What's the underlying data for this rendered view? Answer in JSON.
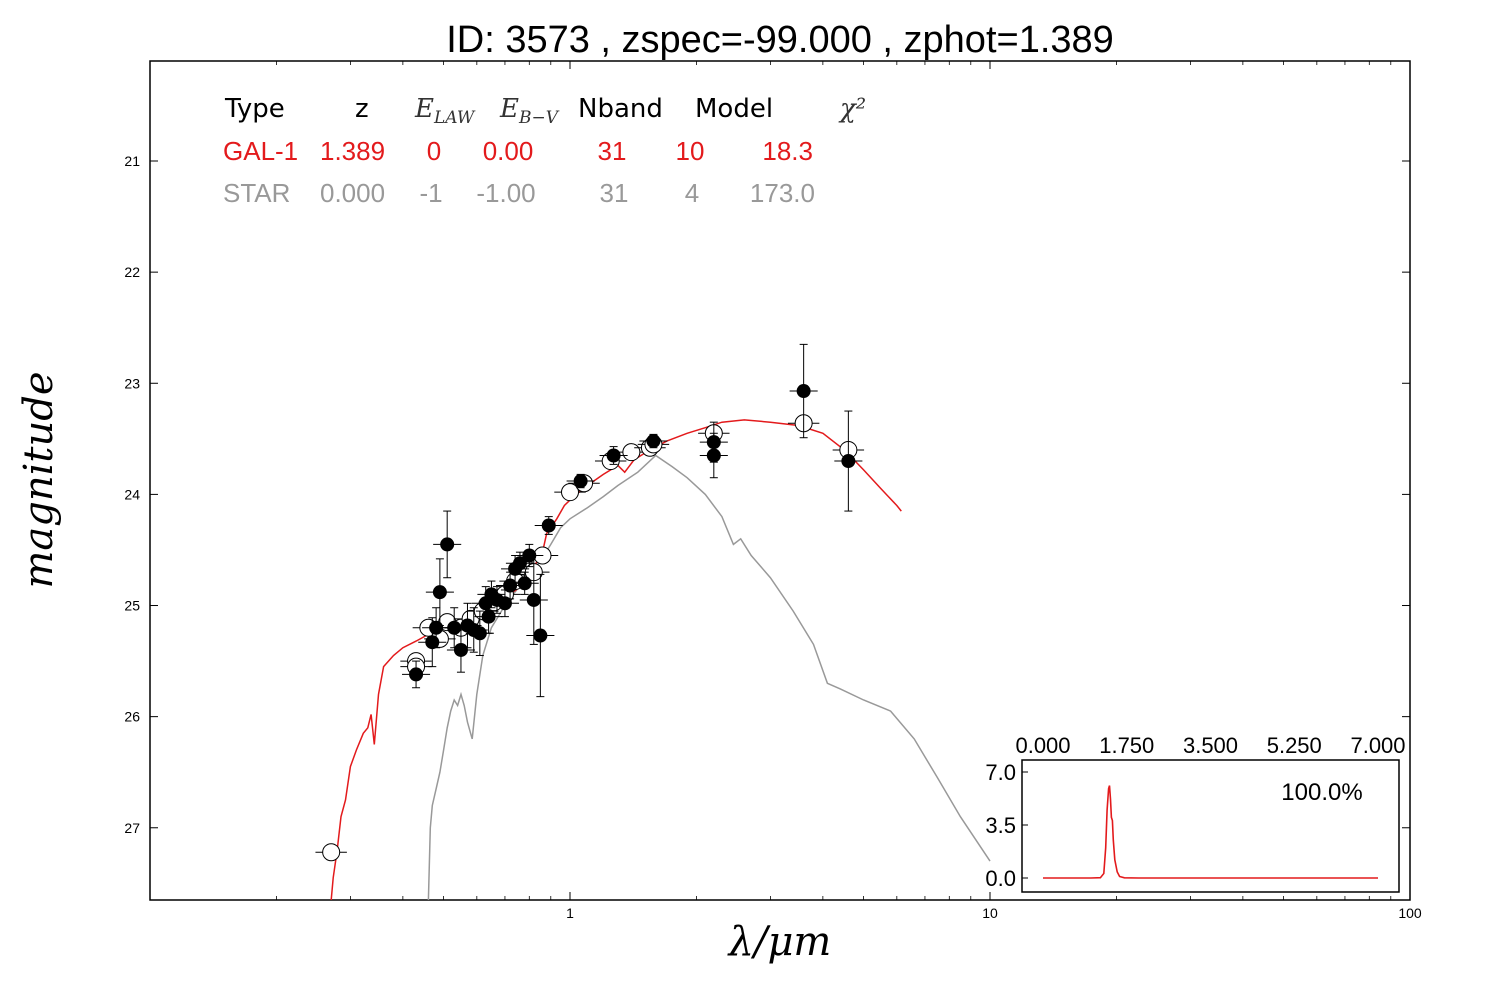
{
  "title": "ID:  3573  , zspec=-99.000 , zphot=1.389",
  "colors": {
    "gal": "#e31a1c",
    "star": "#999999",
    "obs": "#000000"
  },
  "table": {
    "headers": [
      "Type",
      "z",
      "E_LAW",
      "E_B−V",
      "Nband",
      "Model",
      "χ²"
    ],
    "rows": [
      {
        "name": "gal",
        "cells": [
          "GAL-1",
          "1.389",
          "0",
          "0.00",
          "31",
          "10",
          "18.3"
        ]
      },
      {
        "name": "star",
        "cells": [
          "STAR",
          "0.000",
          "-1",
          "-1.00",
          "31",
          "4",
          "173.0"
        ]
      }
    ]
  },
  "chart_data": [
    {
      "type": "scatter",
      "xlabel": "λ/μm",
      "ylabel": "magnitude",
      "xscale": "log",
      "xlim": [
        0.1,
        100
      ],
      "ylim": [
        27.65,
        20.1
      ],
      "xticks": [
        1,
        10,
        100
      ],
      "xtick_labels": [
        "1",
        "10",
        "100"
      ],
      "yticks": [
        21,
        22,
        23,
        24,
        25,
        26,
        27
      ],
      "yaxis_inverted": true,
      "grid": false,
      "series": [
        {
          "name": "GAL-1",
          "kind": "line",
          "color": "#e31a1c",
          "points": [
            [
              0.27,
              27.65
            ],
            [
              0.273,
              27.45
            ],
            [
              0.279,
              27.2
            ],
            [
              0.285,
              26.9
            ],
            [
              0.292,
              26.75
            ],
            [
              0.3,
              26.45
            ],
            [
              0.31,
              26.3
            ],
            [
              0.322,
              26.15
            ],
            [
              0.33,
              26.1
            ],
            [
              0.336,
              25.98
            ],
            [
              0.342,
              26.25
            ],
            [
              0.35,
              25.8
            ],
            [
              0.36,
              25.55
            ],
            [
              0.38,
              25.45
            ],
            [
              0.4,
              25.38
            ],
            [
              0.43,
              25.32
            ],
            [
              0.45,
              25.28
            ],
            [
              0.48,
              25.22
            ],
            [
              0.52,
              25.18
            ],
            [
              0.56,
              25.12
            ],
            [
              0.6,
              25.06
            ],
            [
              0.65,
              25.0
            ],
            [
              0.7,
              24.93
            ],
            [
              0.75,
              24.85
            ],
            [
              0.8,
              24.72
            ],
            [
              0.83,
              24.62
            ],
            [
              0.86,
              24.52
            ],
            [
              0.88,
              24.35
            ],
            [
              0.93,
              24.22
            ],
            [
              0.97,
              24.1
            ],
            [
              1.02,
              24.02
            ],
            [
              1.1,
              23.92
            ],
            [
              1.2,
              23.82
            ],
            [
              1.3,
              23.74
            ],
            [
              1.35,
              23.8
            ],
            [
              1.42,
              23.69
            ],
            [
              1.55,
              23.6
            ],
            [
              1.7,
              23.52
            ],
            [
              1.9,
              23.45
            ],
            [
              2.1,
              23.4
            ],
            [
              2.3,
              23.35
            ],
            [
              2.6,
              23.33
            ],
            [
              3.0,
              23.35
            ],
            [
              3.5,
              23.38
            ],
            [
              4.0,
              23.45
            ],
            [
              4.5,
              23.6
            ],
            [
              5.0,
              23.78
            ],
            [
              5.5,
              23.95
            ],
            [
              6.0,
              24.1
            ],
            [
              6.15,
              24.15
            ]
          ]
        },
        {
          "name": "STAR",
          "kind": "line",
          "color": "#999999",
          "points": [
            [
              0.46,
              27.65
            ],
            [
              0.465,
              27.0
            ],
            [
              0.47,
              26.8
            ],
            [
              0.48,
              26.65
            ],
            [
              0.49,
              26.5
            ],
            [
              0.5,
              26.3
            ],
            [
              0.51,
              26.1
            ],
            [
              0.52,
              25.95
            ],
            [
              0.53,
              25.85
            ],
            [
              0.54,
              25.9
            ],
            [
              0.55,
              25.8
            ],
            [
              0.56,
              25.9
            ],
            [
              0.57,
              26.05
            ],
            [
              0.58,
              26.15
            ],
            [
              0.585,
              26.2
            ],
            [
              0.6,
              25.8
            ],
            [
              0.62,
              25.45
            ],
            [
              0.65,
              25.2
            ],
            [
              0.7,
              25.0
            ],
            [
              0.75,
              24.85
            ],
            [
              0.8,
              24.72
            ],
            [
              0.85,
              24.6
            ],
            [
              0.9,
              24.45
            ],
            [
              0.95,
              24.3
            ],
            [
              1.0,
              24.22
            ],
            [
              1.1,
              24.12
            ],
            [
              1.2,
              24.02
            ],
            [
              1.3,
              23.92
            ],
            [
              1.45,
              23.8
            ],
            [
              1.6,
              23.65
            ],
            [
              1.75,
              23.75
            ],
            [
              1.9,
              23.85
            ],
            [
              2.1,
              24.0
            ],
            [
              2.3,
              24.2
            ],
            [
              2.45,
              24.45
            ],
            [
              2.55,
              24.4
            ],
            [
              2.7,
              24.55
            ],
            [
              3.0,
              24.75
            ],
            [
              3.4,
              25.05
            ],
            [
              3.8,
              25.35
            ],
            [
              4.1,
              25.7
            ],
            [
              4.4,
              25.75
            ],
            [
              5.0,
              25.85
            ],
            [
              5.8,
              25.95
            ],
            [
              6.6,
              26.2
            ],
            [
              7.5,
              26.55
            ],
            [
              8.5,
              26.9
            ],
            [
              10.0,
              27.3
            ]
          ]
        },
        {
          "name": "model magnitudes",
          "kind": "open-circles",
          "color": "#000000",
          "points": [
            [
              0.27,
              27.22
            ],
            [
              0.43,
              25.5
            ],
            [
              0.43,
              25.55
            ],
            [
              0.46,
              25.2
            ],
            [
              0.49,
              25.3
            ],
            [
              0.51,
              25.15
            ],
            [
              0.55,
              25.2
            ],
            [
              0.58,
              25.12
            ],
            [
              0.62,
              25.05
            ],
            [
              0.66,
              24.97
            ],
            [
              0.7,
              24.9
            ],
            [
              0.74,
              24.78
            ],
            [
              0.78,
              24.65
            ],
            [
              0.82,
              24.7
            ],
            [
              0.86,
              24.55
            ],
            [
              1.0,
              23.98
            ],
            [
              1.08,
              23.9
            ],
            [
              1.25,
              23.7
            ],
            [
              1.4,
              23.62
            ],
            [
              1.55,
              23.58
            ],
            [
              1.58,
              23.55
            ],
            [
              2.2,
              23.45
            ],
            [
              3.6,
              23.36
            ],
            [
              4.6,
              23.6
            ]
          ]
        },
        {
          "name": "observed magnitudes",
          "kind": "filled-circles",
          "color": "#000000",
          "points": [
            [
              0.43,
              25.62,
              0.12
            ],
            [
              0.47,
              25.33,
              0.22
            ],
            [
              0.48,
              25.2,
              0.18
            ],
            [
              0.49,
              24.88,
              0.3
            ],
            [
              0.51,
              24.45,
              0.3
            ],
            [
              0.53,
              25.2,
              0.18
            ],
            [
              0.55,
              25.4,
              0.2
            ],
            [
              0.57,
              25.18,
              0.2
            ],
            [
              0.59,
              25.22,
              0.2
            ],
            [
              0.61,
              25.25,
              0.2
            ],
            [
              0.63,
              24.98,
              0.15
            ],
            [
              0.64,
              25.1,
              0.15
            ],
            [
              0.65,
              24.9,
              0.12
            ],
            [
              0.67,
              24.95,
              0.12
            ],
            [
              0.7,
              24.98,
              0.12
            ],
            [
              0.72,
              24.82,
              0.12
            ],
            [
              0.74,
              24.67,
              0.12
            ],
            [
              0.76,
              24.62,
              0.1
            ],
            [
              0.78,
              24.8,
              0.1
            ],
            [
              0.8,
              24.55,
              0.1
            ],
            [
              0.82,
              24.95,
              0.4
            ],
            [
              0.85,
              25.27,
              0.55
            ],
            [
              0.89,
              24.28,
              0.08
            ],
            [
              1.06,
              23.88,
              0.06
            ],
            [
              1.27,
              23.65,
              0.08
            ],
            [
              1.58,
              23.52,
              0.06
            ],
            [
              2.2,
              23.65,
              0.2
            ],
            [
              2.2,
              23.53,
              0.18
            ],
            [
              3.6,
              23.07,
              0.42
            ],
            [
              4.6,
              23.7,
              0.45
            ]
          ]
        }
      ]
    },
    {
      "type": "line",
      "title": "",
      "xlim": [
        0,
        7
      ],
      "ylim": [
        -0.5,
        8.0
      ],
      "xticks": [
        0,
        1.75,
        3.5,
        5.25,
        7
      ],
      "xtick_labels": [
        "0.000",
        "1.750",
        "3.500",
        "5.250",
        "7.000"
      ],
      "yticks": [
        0,
        3.5,
        7
      ],
      "ytick_labels": [
        "0.0",
        "3.5",
        "7.0"
      ],
      "annotation": "100.0%",
      "series": [
        {
          "name": "PDF(z)",
          "color": "#e31a1c",
          "points": [
            [
              0,
              0
            ],
            [
              1.0,
              0
            ],
            [
              1.2,
              0.02
            ],
            [
              1.27,
              0.3
            ],
            [
              1.31,
              2.0
            ],
            [
              1.34,
              4.5
            ],
            [
              1.37,
              5.9
            ],
            [
              1.39,
              6.1
            ],
            [
              1.41,
              5.2
            ],
            [
              1.43,
              4.0
            ],
            [
              1.45,
              3.8
            ],
            [
              1.47,
              2.5
            ],
            [
              1.5,
              1.2
            ],
            [
              1.55,
              0.4
            ],
            [
              1.6,
              0.1
            ],
            [
              1.7,
              0.01
            ],
            [
              2.0,
              0
            ],
            [
              7.0,
              0
            ]
          ]
        }
      ]
    }
  ]
}
